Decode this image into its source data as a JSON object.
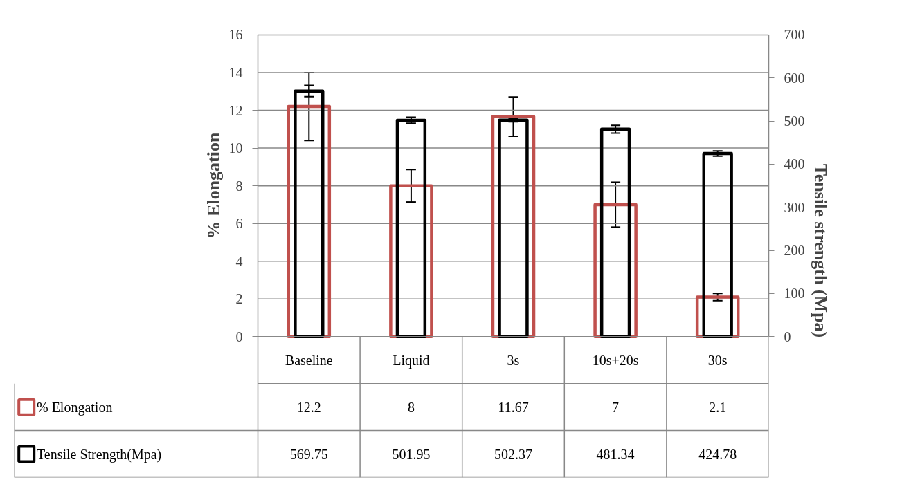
{
  "chart_data": {
    "type": "bar",
    "ylabel": "% Elongation",
    "y2label": "Tensile strength (Mpa)",
    "categories": [
      "Baseline",
      "Liquid",
      "3s",
      "10s+20s",
      "30s"
    ],
    "series": [
      {
        "name": "% Elongation",
        "color": "#c0504d",
        "values": [
          12.2,
          8,
          11.67,
          7,
          2.1
        ],
        "errors": [
          1.8,
          0.86,
          1.04,
          1.19,
          0.19
        ]
      },
      {
        "name": "Tensile Strength(Mpa)",
        "color": "#000000",
        "axis": "y2",
        "values": [
          569.75,
          501.95,
          502.37,
          481.34,
          424.78
        ],
        "errors": [
          13,
          7,
          4,
          9,
          6
        ]
      }
    ],
    "ylim": [
      0,
      16
    ],
    "yticks": [
      0,
      2,
      4,
      6,
      8,
      10,
      12,
      14,
      16
    ],
    "y2lim": [
      0,
      700
    ],
    "y2ticks": [
      0,
      100,
      200,
      300,
      400,
      500,
      600,
      700
    ],
    "grid": "y",
    "legend": "bottom",
    "data_labels": true
  }
}
